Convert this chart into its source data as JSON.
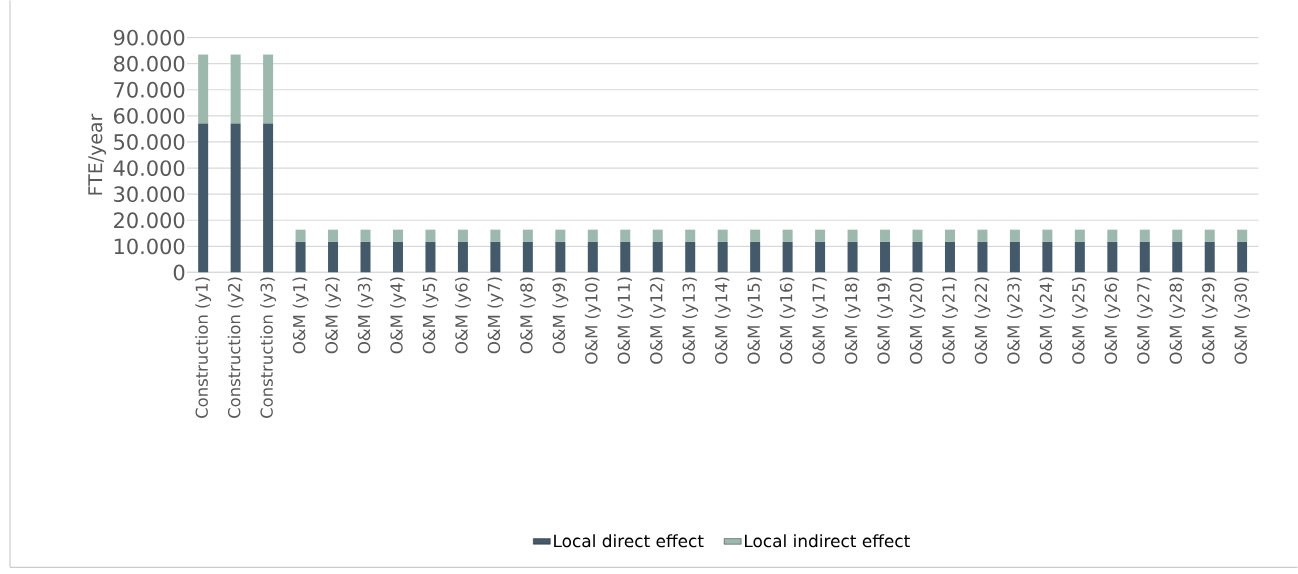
{
  "chart_data": {
    "type": "bar",
    "stacked": true,
    "ylabel": "FTE/year",
    "categories": [
      "Construction (y1)",
      "Construction (y2)",
      "Construction (y3)",
      "O&M (y1)",
      "O&M (y2)",
      "O&M (y3)",
      "O&M (y4)",
      "O&M (y5)",
      "O&M (y6)",
      "O&M (y7)",
      "O&M (y8)",
      "O&M (y9)",
      "O&M (y10)",
      "O&M (y11)",
      "O&M (y12)",
      "O&M (y13)",
      "O&M (y14)",
      "O&M (y15)",
      "O&M (y16)",
      "O&M (y17)",
      "O&M (y18)",
      "O&M (y19)",
      "O&M (y20)",
      "O&M (y21)",
      "O&M (y22)",
      "O&M (y23)",
      "O&M (y24)",
      "O&M (y25)",
      "O&M (y26)",
      "O&M (y27)",
      "O&M (y28)",
      "O&M (y29)",
      "O&M (y30)"
    ],
    "series": [
      {
        "name": "Local direct effect",
        "color": "#44596a",
        "values": [
          57100,
          57100,
          57100,
          11700,
          11700,
          11700,
          11700,
          11700,
          11700,
          11700,
          11700,
          11700,
          11700,
          11700,
          11700,
          11700,
          11700,
          11700,
          11700,
          11700,
          11700,
          11700,
          11700,
          11700,
          11700,
          11700,
          11700,
          11700,
          11700,
          11700,
          11700,
          11700,
          11700
        ]
      },
      {
        "name": "Local indirect effect",
        "color": "#9db8ad",
        "values": [
          26400,
          26400,
          26400,
          4700,
          4700,
          4700,
          4700,
          4700,
          4700,
          4700,
          4700,
          4700,
          4700,
          4700,
          4700,
          4700,
          4700,
          4700,
          4700,
          4700,
          4700,
          4700,
          4700,
          4700,
          4700,
          4700,
          4700,
          4700,
          4700,
          4700,
          4700,
          4700,
          4700
        ]
      }
    ],
    "ylim": [
      0,
      90000
    ],
    "yticks": [
      0,
      {
        "value": 10000,
        "label": "10.000"
      },
      {
        "value": 20000,
        "label": "20.000"
      },
      {
        "value": 30000,
        "label": "30.000"
      },
      {
        "value": 40000,
        "label": "40.000"
      },
      {
        "value": 50000,
        "label": "50.000"
      },
      {
        "value": 60000,
        "label": "60.000"
      },
      {
        "value": 70000,
        "label": "70.000"
      },
      {
        "value": 80000,
        "label": "80.000"
      },
      {
        "value": 90000,
        "label": "90.000"
      }
    ],
    "grid": "y",
    "legend": "bottom"
  }
}
